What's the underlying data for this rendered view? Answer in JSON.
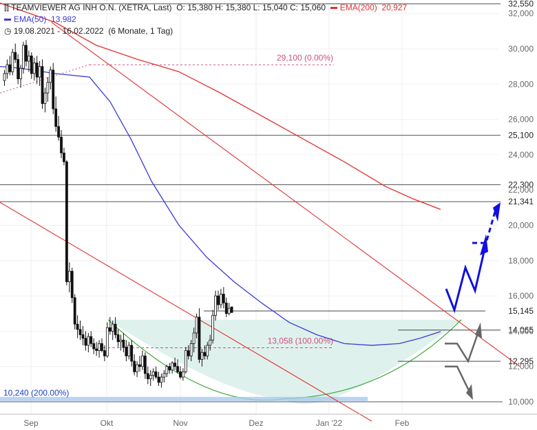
{
  "header": {
    "instrument": "TEAMVIEWER AG  INH O.N. (XETRA, Last)",
    "ohlc": "O: 15,380  H: 15,380  L: 15,040  C: 15,060",
    "ema200_label": "EMA(200)",
    "ema200_value": "20,927",
    "ema50_label": "EMA(50)",
    "ema50_value": "13,982",
    "period": "19.08.2021 - 16.02.2022",
    "period_detail": "(6 Monate, 1 Tag)"
  },
  "colors": {
    "ema50": "#3a3ad6",
    "ema200": "#e03030",
    "trend": "#e03030",
    "fib": "#d0507a",
    "bowl_fill": "#dff1ec",
    "bowl_stroke": "#3aa83a",
    "scenario_up": "#1010e0",
    "scenario_down": "#666666",
    "band": "#a9c9ef"
  },
  "chart_data": {
    "type": "candlestick",
    "x_months": [
      "Sep",
      "Okt",
      "Nov",
      "Dez",
      "Jan '22",
      "Feb"
    ],
    "ylim": [
      9.8,
      32.6
    ],
    "y_ticks": [
      "10,000",
      "12,000",
      "14,000",
      "16,000",
      "18,000",
      "20,000",
      "22,000",
      "24,000",
      "26,000",
      "28,000",
      "30,000",
      "32,000"
    ],
    "y_tick_values": [
      10,
      12,
      14,
      16,
      18,
      20,
      22,
      24,
      26,
      28,
      30,
      32
    ],
    "levels": [
      {
        "value": 32.55,
        "label": "32,550"
      },
      {
        "value": 25.1,
        "label": "25,100"
      },
      {
        "value": 22.3,
        "label": "22,300"
      },
      {
        "value": 21.341,
        "label": "21,341"
      },
      {
        "value": 15.145,
        "label": "15,145"
      },
      {
        "value": 14.065,
        "label": "14,065"
      },
      {
        "value": 12.295,
        "label": "12,295"
      },
      {
        "value": 10.0,
        "label": ""
      }
    ],
    "annotations": [
      {
        "text": "29,100 (0.00%)",
        "value": 29.1
      },
      {
        "text": "13,058 (100.00%)",
        "value": 13.058
      },
      {
        "text": "10,240 (200.00%)",
        "value": 10.24
      }
    ],
    "candles": [
      [
        28.2,
        28.8,
        27.9,
        28.6
      ],
      [
        28.6,
        29.4,
        28.3,
        29.1
      ],
      [
        29.1,
        29.6,
        28.5,
        28.7
      ],
      [
        28.7,
        30.0,
        28.5,
        29.8
      ],
      [
        29.8,
        30.3,
        29.2,
        29.4
      ],
      [
        29.4,
        29.7,
        28.0,
        28.3
      ],
      [
        28.3,
        29.1,
        27.8,
        28.9
      ],
      [
        28.9,
        30.4,
        28.6,
        30.2
      ],
      [
        30.2,
        30.5,
        29.0,
        29.3
      ],
      [
        29.3,
        29.9,
        28.7,
        29.6
      ],
      [
        29.6,
        29.8,
        28.3,
        28.6
      ],
      [
        28.6,
        29.5,
        28.2,
        29.2
      ],
      [
        29.2,
        29.6,
        28.0,
        28.4
      ],
      [
        28.4,
        29.3,
        27.9,
        29.0
      ],
      [
        29.0,
        29.4,
        26.6,
        26.9
      ],
      [
        26.9,
        27.8,
        26.4,
        27.5
      ],
      [
        27.5,
        28.4,
        27.0,
        28.1
      ],
      [
        28.1,
        29.0,
        27.7,
        28.8
      ],
      [
        28.8,
        29.2,
        26.3,
        26.6
      ],
      [
        26.6,
        27.3,
        25.3,
        25.6
      ],
      [
        25.6,
        26.2,
        24.8,
        25.0
      ],
      [
        25.0,
        25.4,
        23.8,
        24.1
      ],
      [
        24.1,
        24.4,
        23.4,
        23.6
      ],
      [
        23.6,
        23.7,
        16.6,
        16.8
      ],
      [
        16.8,
        17.9,
        16.2,
        17.4
      ],
      [
        17.4,
        17.6,
        15.6,
        15.9
      ],
      [
        15.9,
        16.1,
        14.1,
        14.4
      ],
      [
        14.4,
        14.9,
        13.6,
        14.1
      ],
      [
        14.1,
        14.6,
        13.5,
        13.8
      ],
      [
        13.8,
        14.3,
        13.2,
        13.6
      ],
      [
        13.6,
        14.0,
        12.9,
        13.2
      ],
      [
        13.2,
        13.9,
        12.8,
        13.7
      ],
      [
        13.7,
        14.0,
        13.1,
        13.3
      ],
      [
        13.3,
        13.6,
        12.7,
        13.0
      ],
      [
        13.0,
        13.4,
        12.6,
        12.9
      ],
      [
        12.9,
        13.5,
        12.5,
        13.3
      ],
      [
        13.3,
        13.6,
        12.8,
        12.9
      ],
      [
        12.9,
        13.2,
        12.3,
        12.6
      ],
      [
        12.6,
        14.5,
        12.5,
        14.2
      ],
      [
        14.2,
        14.8,
        13.8,
        14.0
      ],
      [
        14.0,
        14.6,
        13.5,
        14.4
      ],
      [
        14.4,
        14.8,
        13.6,
        13.8
      ],
      [
        13.8,
        14.1,
        13.1,
        13.4
      ],
      [
        13.4,
        13.8,
        12.9,
        13.5
      ],
      [
        13.5,
        13.9,
        12.8,
        13.1
      ],
      [
        13.1,
        13.5,
        12.3,
        12.6
      ],
      [
        12.6,
        13.4,
        12.4,
        13.2
      ],
      [
        13.2,
        13.5,
        12.0,
        12.3
      ],
      [
        12.3,
        12.7,
        11.5,
        11.7
      ],
      [
        11.7,
        12.3,
        11.4,
        12.1
      ],
      [
        12.1,
        12.6,
        11.7,
        12.0
      ],
      [
        12.0,
        12.9,
        11.8,
        12.6
      ],
      [
        12.6,
        12.8,
        11.3,
        11.6
      ],
      [
        11.6,
        12.0,
        11.0,
        11.3
      ],
      [
        11.3,
        11.8,
        10.9,
        11.5
      ],
      [
        11.5,
        11.9,
        11.2,
        11.7
      ],
      [
        11.7,
        12.0,
        11.3,
        11.4
      ],
      [
        11.4,
        11.7,
        10.9,
        11.1
      ],
      [
        11.1,
        11.6,
        10.8,
        11.4
      ],
      [
        11.4,
        11.8,
        11.1,
        11.6
      ],
      [
        11.6,
        12.1,
        11.4,
        12.0
      ],
      [
        12.0,
        12.2,
        11.6,
        11.8
      ],
      [
        11.8,
        12.3,
        11.6,
        12.2
      ],
      [
        12.2,
        12.5,
        11.8,
        12.0
      ],
      [
        12.0,
        12.4,
        11.6,
        11.7
      ],
      [
        11.7,
        12.0,
        11.3,
        11.4
      ],
      [
        11.4,
        11.9,
        11.2,
        11.7
      ],
      [
        11.7,
        13.1,
        11.6,
        12.9
      ],
      [
        12.9,
        13.2,
        12.4,
        12.6
      ],
      [
        12.6,
        13.5,
        12.3,
        13.3
      ],
      [
        13.3,
        14.2,
        12.8,
        13.9
      ],
      [
        13.9,
        15.0,
        13.6,
        14.8
      ],
      [
        14.8,
        15.3,
        12.2,
        12.4
      ],
      [
        12.4,
        13.0,
        12.0,
        12.8
      ],
      [
        12.8,
        13.2,
        12.4,
        12.6
      ],
      [
        12.6,
        13.4,
        12.4,
        13.2
      ],
      [
        13.2,
        13.8,
        12.9,
        13.5
      ],
      [
        13.5,
        15.2,
        13.3,
        14.9
      ],
      [
        14.9,
        16.3,
        14.6,
        16.0
      ],
      [
        16.0,
        16.3,
        15.2,
        15.5
      ],
      [
        15.5,
        16.4,
        15.3,
        16.1
      ],
      [
        16.1,
        16.5,
        15.3,
        15.6
      ],
      [
        15.6,
        15.9,
        14.8,
        15.0
      ],
      [
        15.0,
        15.6,
        14.9,
        15.3
      ],
      [
        15.38,
        15.38,
        15.04,
        15.06
      ]
    ]
  }
}
